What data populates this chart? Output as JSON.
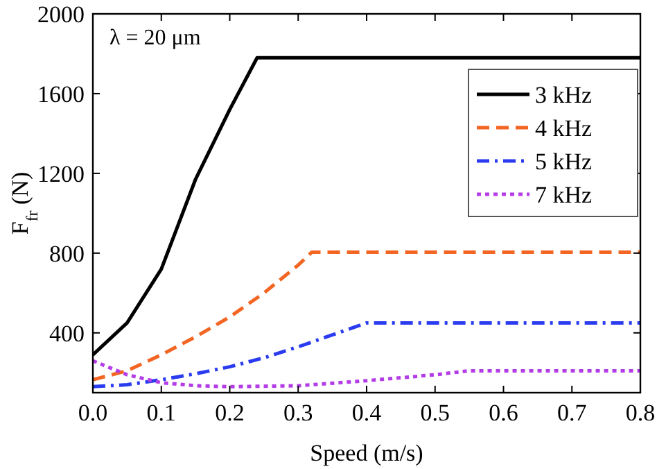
{
  "chart_data": {
    "type": "line",
    "xlabel": "Speed (m/s)",
    "ylabel": "F$_{fr}$ (N)",
    "annotations": [
      "λ = 20 μm"
    ],
    "xlim": [
      0,
      0.8
    ],
    "ylim": [
      100,
      2000
    ],
    "xticks": [
      {
        "value": 0,
        "label": "0.0"
      },
      0.1,
      0.2,
      0.3,
      0.4,
      0.5,
      0.6,
      0.7,
      0.8
    ],
    "yticks": [
      400,
      800,
      1200,
      1600,
      2000
    ],
    "grid": false,
    "legend": "top right",
    "series": [
      {
        "name": "3 kHz",
        "color": "#000000",
        "line_style": "solid",
        "x": [
          0,
          0.05,
          0.1,
          0.15,
          0.2,
          0.24,
          0.8
        ],
        "values": [
          290,
          450,
          720,
          1170,
          1520,
          1780,
          1780
        ]
      },
      {
        "name": "4 kHz",
        "color": "#f26522",
        "line_style": "dashed",
        "x": [
          0,
          0.05,
          0.1,
          0.15,
          0.2,
          0.25,
          0.3,
          0.32,
          0.8
        ],
        "values": [
          165,
          210,
          290,
          380,
          480,
          600,
          740,
          805,
          805
        ]
      },
      {
        "name": "5 kHz",
        "color": "#2b3cf0",
        "line_style": "dashdot",
        "x": [
          0,
          0.05,
          0.1,
          0.15,
          0.2,
          0.25,
          0.3,
          0.35,
          0.4,
          0.8
        ],
        "values": [
          130,
          140,
          165,
          195,
          230,
          275,
          330,
          390,
          450,
          450
        ]
      },
      {
        "name": "7 kHz",
        "color": "#b43ce6",
        "line_style": "dotted",
        "x": [
          0,
          0.05,
          0.1,
          0.15,
          0.2,
          0.3,
          0.4,
          0.5,
          0.55,
          0.8
        ],
        "values": [
          260,
          190,
          150,
          135,
          130,
          135,
          160,
          190,
          210,
          210
        ]
      }
    ]
  }
}
